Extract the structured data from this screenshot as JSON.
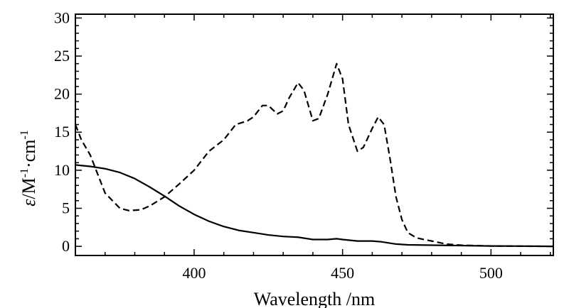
{
  "chart_data": {
    "type": "line",
    "xlabel": "Wavelength /nm",
    "ylabel": {
      "symbol": "ε",
      "unit_1": "/M",
      "exp_1": "-1",
      "dot": "·",
      "unit_2": "cm",
      "exp_2": "-1"
    },
    "xlim": [
      360,
      521
    ],
    "ylim": [
      -1.2,
      30.5
    ],
    "x_ticks": [
      400,
      450,
      500
    ],
    "y_ticks": [
      0,
      5,
      10,
      15,
      20,
      25,
      30
    ],
    "grid": false,
    "legend": "none",
    "series": [
      {
        "style": "solid",
        "color": "#000000",
        "x": [
          360,
          365,
          370,
          375,
          380,
          385,
          390,
          395,
          400,
          405,
          410,
          415,
          420,
          425,
          430,
          435,
          440,
          445,
          448,
          450,
          455,
          460,
          463,
          468,
          472,
          480,
          490,
          500,
          510,
          521
        ],
        "y": [
          10.7,
          10.5,
          10.2,
          9.7,
          8.9,
          7.8,
          6.6,
          5.3,
          4.2,
          3.3,
          2.6,
          2.1,
          1.8,
          1.5,
          1.3,
          1.2,
          0.9,
          0.9,
          1.0,
          0.9,
          0.7,
          0.7,
          0.6,
          0.3,
          0.2,
          0.15,
          0.1,
          0.05,
          0.03,
          0.0
        ]
      },
      {
        "style": "dashed",
        "color": "#000000",
        "x": [
          360,
          362,
          365,
          368,
          370,
          375,
          378,
          382,
          385,
          390,
          395,
          400,
          405,
          410,
          414,
          418,
          420,
          423,
          425,
          428,
          430,
          432,
          435,
          437,
          440,
          442,
          445,
          448,
          450,
          452,
          455,
          457,
          460,
          462,
          464,
          466,
          468,
          470,
          472,
          475,
          480,
          485,
          490,
          500,
          510,
          521
        ],
        "y": [
          16.0,
          14.0,
          12.0,
          9.0,
          7.0,
          5.0,
          4.7,
          4.8,
          5.3,
          6.5,
          8.2,
          10.0,
          12.5,
          14.0,
          16.0,
          16.5,
          17.0,
          18.5,
          18.5,
          17.4,
          17.8,
          19.5,
          21.5,
          20.5,
          16.5,
          16.8,
          20.0,
          24.0,
          22.0,
          16.0,
          12.5,
          13.0,
          15.5,
          17.0,
          16.0,
          11.5,
          6.5,
          3.5,
          1.8,
          1.1,
          0.7,
          0.3,
          0.15,
          0.05,
          0.02,
          0.0
        ]
      }
    ]
  }
}
